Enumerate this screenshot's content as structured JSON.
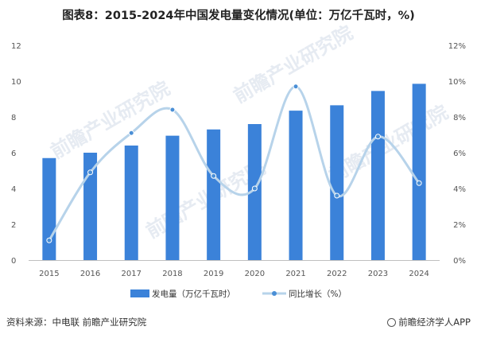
{
  "chart_data": {
    "type": "bar",
    "title": "图表8：2015-2024年中国发电量变化情况(单位：万亿千瓦时，%)",
    "categories": [
      "2015",
      "2016",
      "2017",
      "2018",
      "2019",
      "2020",
      "2021",
      "2022",
      "2023",
      "2024"
    ],
    "series": [
      {
        "name": "发电量（万亿千瓦时）",
        "type": "bar",
        "axis": "left",
        "values": [
          5.7,
          6.0,
          6.4,
          6.95,
          7.3,
          7.6,
          8.35,
          8.65,
          9.45,
          9.85
        ]
      },
      {
        "name": "同比增长（%）",
        "type": "line",
        "axis": "right",
        "values": [
          1.1,
          4.9,
          7.1,
          8.4,
          4.7,
          4.0,
          9.7,
          3.6,
          6.9,
          4.3
        ]
      }
    ],
    "ylim_left": [
      0,
      12
    ],
    "yticks_left": [
      "0",
      "2",
      "4",
      "6",
      "8",
      "10",
      "12"
    ],
    "ylim_right": [
      0,
      12
    ],
    "yticks_right": [
      "0%",
      "2%",
      "4%",
      "6%",
      "8%",
      "10%",
      "12%"
    ],
    "legend_position": "bottom",
    "grid": false,
    "colors": {
      "bar": "#3b82d9",
      "line": "#b7d3ea",
      "marker": "#4a8fd6"
    }
  },
  "watermark": "前瞻产业研究院",
  "footer": {
    "source": "资料来源：中电联 前瞻产业研究院",
    "brand": "前瞻经济学人APP"
  }
}
